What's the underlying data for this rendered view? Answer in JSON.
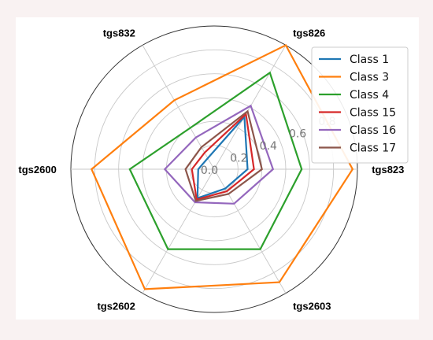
{
  "chart_data": {
    "type": "radar",
    "axes": [
      "tgs823",
      "tgs826",
      "tgs832",
      "tgs2600",
      "tgs2602",
      "tgs2603"
    ],
    "rlim": [
      0,
      0.9
    ],
    "rticks": [
      0.0,
      0.2,
      0.4,
      0.6,
      0.8
    ],
    "rtick_labels": [
      "0.0",
      "0.2",
      "0.4",
      "0.6",
      "0.8"
    ],
    "grid": true,
    "legend_position": "top-right",
    "series": [
      {
        "name": "Class 1",
        "color": "#1f77b4",
        "values": [
          0.21,
          0.38,
          0.08,
          0.1,
          0.21,
          0.14
        ]
      },
      {
        "name": "Class 3",
        "color": "#ff7f0e",
        "values": [
          0.87,
          0.9,
          0.5,
          0.77,
          0.87,
          0.82
        ]
      },
      {
        "name": "Class 4",
        "color": "#2ca02c",
        "values": [
          0.55,
          0.7,
          0.3,
          0.53,
          0.58,
          0.58
        ]
      },
      {
        "name": "Class 15",
        "color": "#d62728",
        "values": [
          0.25,
          0.4,
          0.12,
          0.14,
          0.22,
          0.16
        ]
      },
      {
        "name": "Class 16",
        "color": "#9467bd",
        "values": [
          0.37,
          0.46,
          0.23,
          0.31,
          0.24,
          0.25
        ]
      },
      {
        "name": "Class 17",
        "color": "#8c564b",
        "values": [
          0.3,
          0.42,
          0.16,
          0.18,
          0.23,
          0.18
        ]
      }
    ]
  }
}
